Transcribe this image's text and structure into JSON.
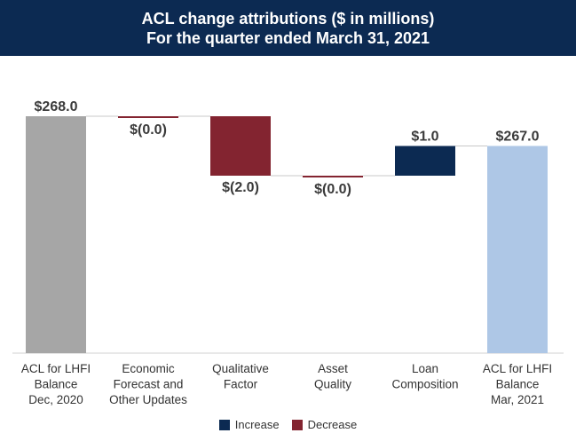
{
  "title": {
    "line1": "ACL change attributions ($ in millions)",
    "line2": "For the quarter ended March 31, 2021"
  },
  "colors": {
    "header_bg": "#0c2a52",
    "total_start": "#a6a6a6",
    "total_end": "#aec7e6",
    "increase": "#0c2a52",
    "decrease": "#832430"
  },
  "legend": [
    {
      "label": "Increase",
      "color": "#0c2a52"
    },
    {
      "label": "Decrease",
      "color": "#832430"
    }
  ],
  "chart_data": {
    "type": "waterfall",
    "title": "ACL change attributions ($ in millions)",
    "subtitle": "For the quarter ended March 31, 2021",
    "ylim": [
      0,
      268
    ],
    "bars": [
      {
        "category": [
          "ACL for LHFI",
          "Balance",
          "Dec, 2020"
        ],
        "kind": "total",
        "value": 268.0,
        "label": "$268.0"
      },
      {
        "category": [
          "Economic",
          "Forecast and",
          "Other Updates"
        ],
        "kind": "decrease",
        "value": 0.0,
        "label": "$(0.0)"
      },
      {
        "category": [
          "Qualitative",
          "Factor"
        ],
        "kind": "decrease",
        "value": -2.0,
        "label": "$(2.0)"
      },
      {
        "category": [
          "Asset",
          "Quality"
        ],
        "kind": "decrease",
        "value": 0.0,
        "label": "$(0.0)"
      },
      {
        "category": [
          "Loan",
          "Composition"
        ],
        "kind": "increase",
        "value": 1.0,
        "label": "$1.0"
      },
      {
        "category": [
          "ACL for LHFI",
          "Balance",
          "Mar, 2021"
        ],
        "kind": "total",
        "value": 267.0,
        "label": "$267.0"
      }
    ]
  }
}
